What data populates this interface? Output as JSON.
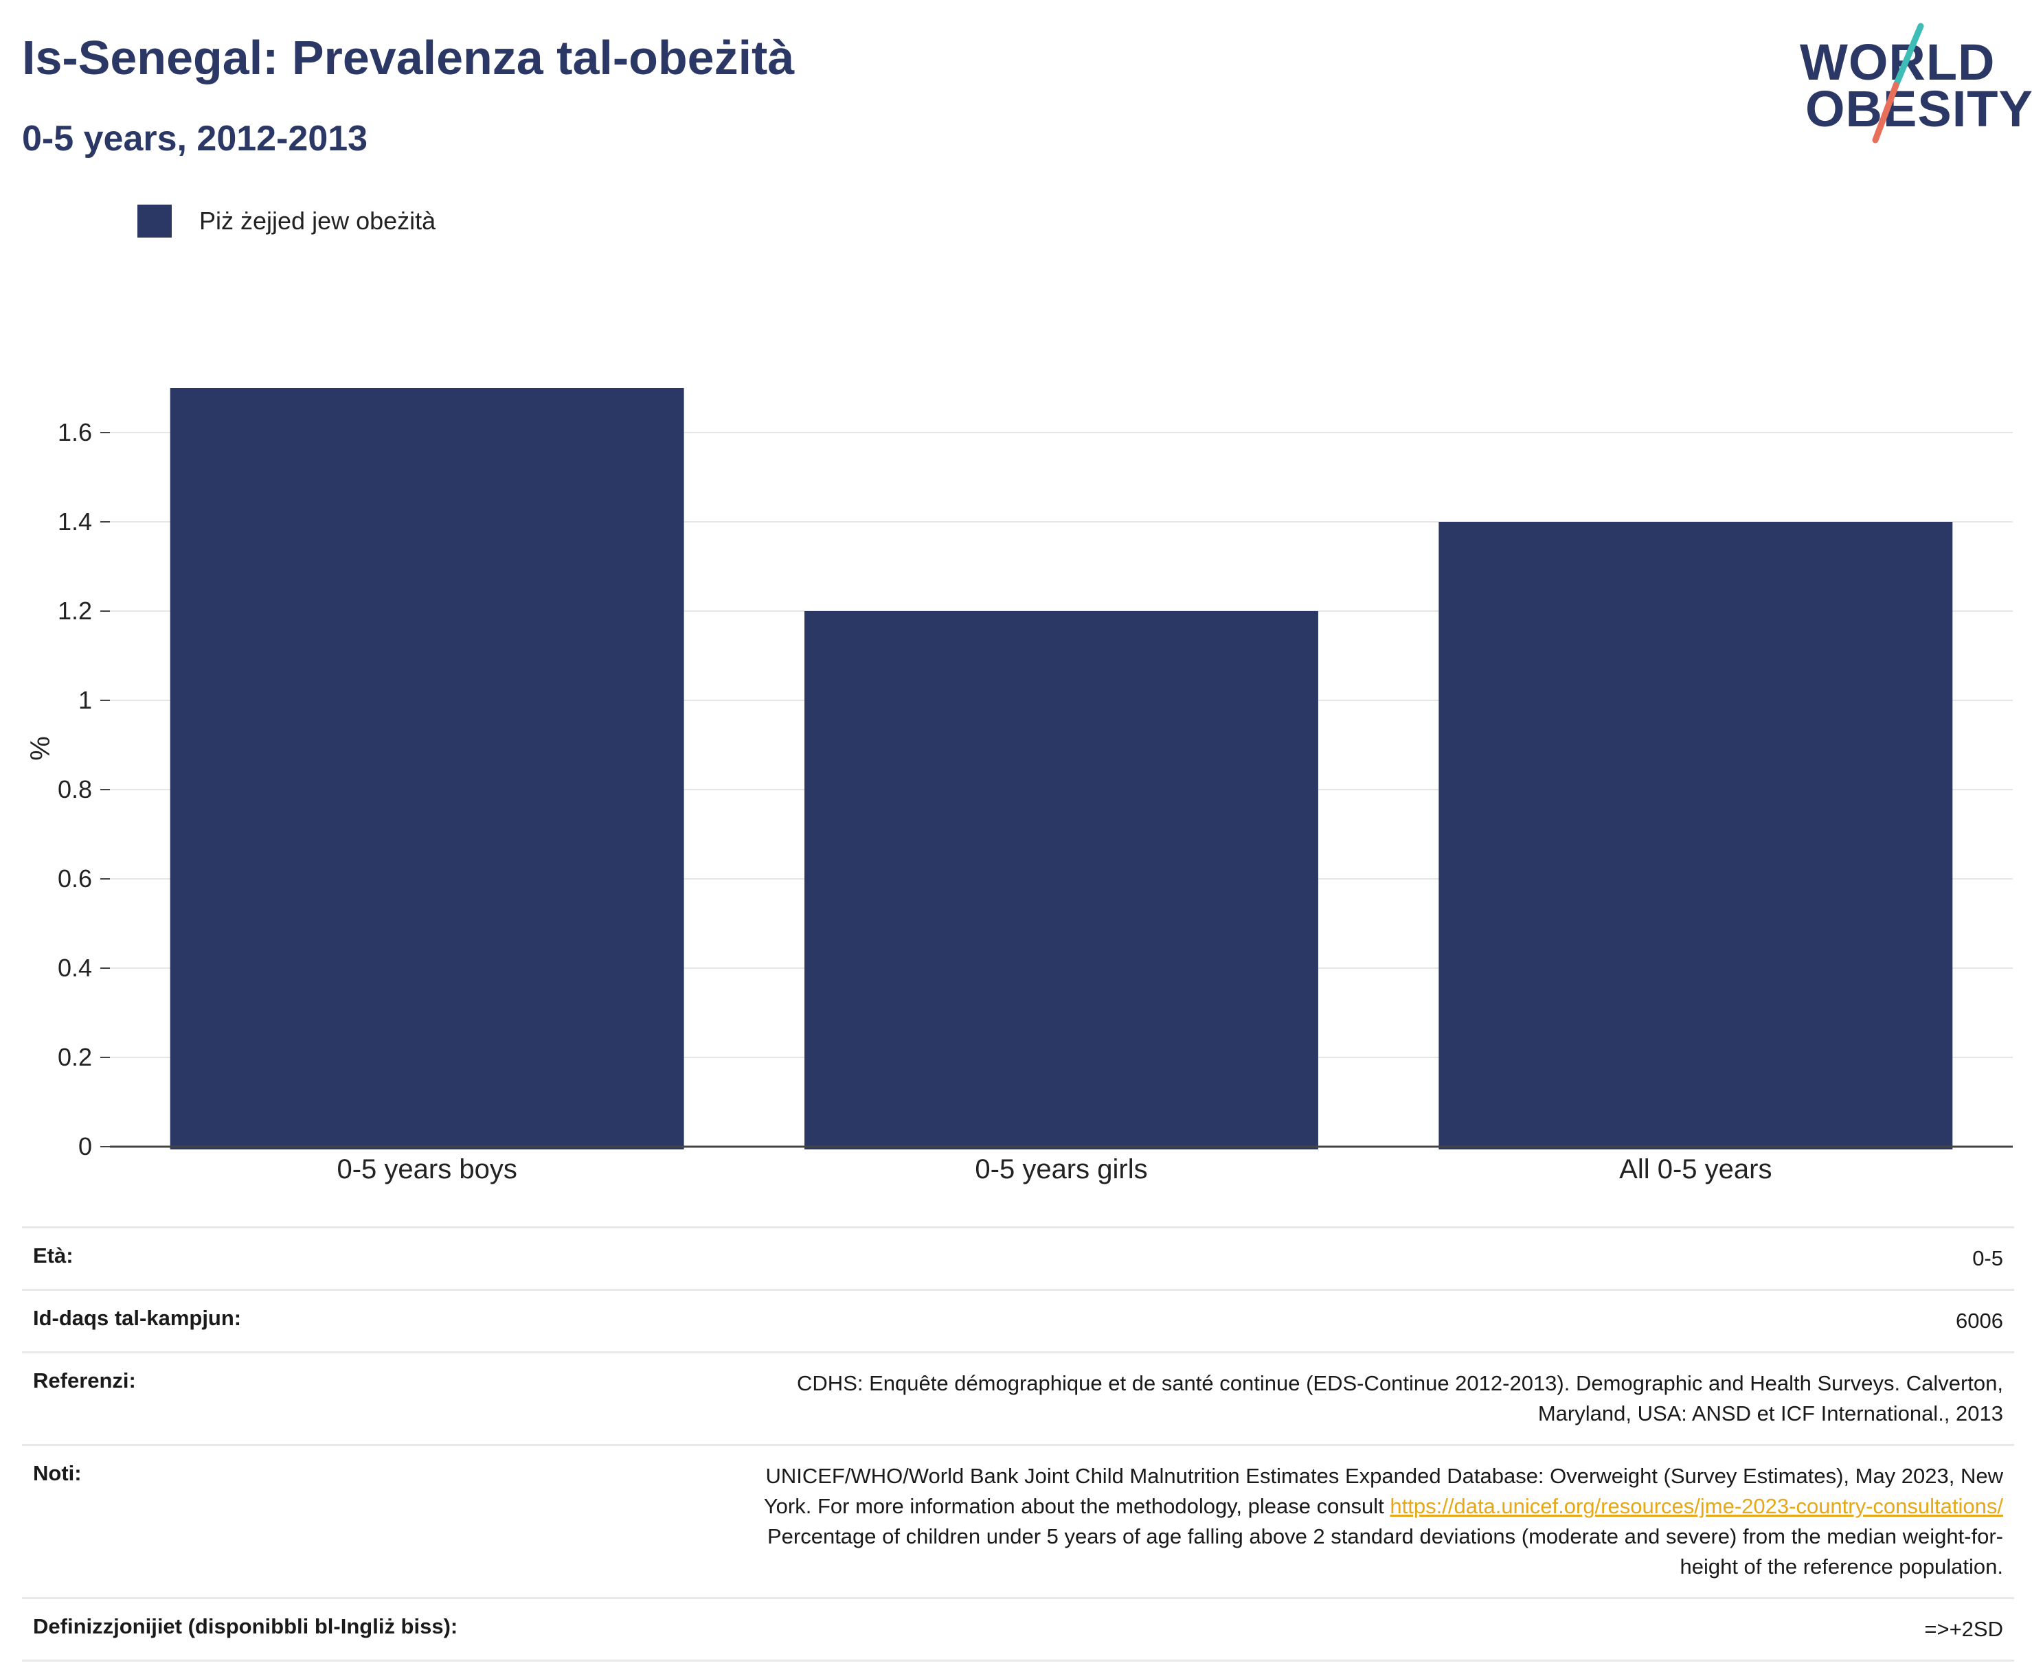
{
  "header": {
    "title": "Is-Senegal: Prevalenza tal-obeżità",
    "subtitle": "0-5 years, 2012-2013"
  },
  "logo": {
    "line1": "WORLD",
    "line2": "OBESITY",
    "colors": {
      "text": "#2b3765",
      "slash_top": "#3dbdb5",
      "slash_bottom": "#e8705a"
    }
  },
  "legend": {
    "label": "Piż żejjed jew obeżità",
    "color": "#2b3765"
  },
  "chart_data": {
    "type": "bar",
    "categories": [
      "0-5 years boys",
      "0-5 years girls",
      "All 0-5 years"
    ],
    "series": [
      {
        "name": "Piż żejjed jew obeżità",
        "values": [
          1.7,
          1.2,
          1.4
        ],
        "color": "#2b3765"
      }
    ],
    "ylabel": "%",
    "ylim": [
      0,
      1.75
    ],
    "yticks": [
      0,
      0.2,
      0.4,
      0.6,
      0.8,
      1,
      1.2,
      1.4,
      1.6
    ],
    "ytick_labels": [
      "0",
      "0.2",
      "0.4",
      "0.6",
      "0.8",
      "1",
      "1.2",
      "1.4",
      "1.6"
    ],
    "grid": true,
    "legend_position": "top-left"
  },
  "info": {
    "age_label": "Età:",
    "age_value": "0-5",
    "sample_label": "Id-daqs tal-kampjun:",
    "sample_value": "6006",
    "refs_label": "Referenzi:",
    "refs_value_1": "CDHS: Enquête démographique et de santé continue (EDS-Continue 2012-2013). Demographic and Health Surveys. Calverton,",
    "refs_value_2": "Maryland, USA: ANSD et ICF International., 2013",
    "notes_label": "Noti:",
    "notes_value_1": "UNICEF/WHO/World Bank Joint Child Malnutrition Estimates Expanded Database: Overweight (Survey Estimates), May 2023, New",
    "notes_value_2a": "York. For more information about the methodology, please consult ",
    "notes_link": "https://data.unicef.org/resources/jme-2023-country-consultations/",
    "notes_value_3": "Percentage of children under 5 years of age falling above 2 standard deviations (moderate and severe) from the median weight-for-",
    "notes_value_4": "height of the reference population.",
    "defs_label": "Definizzjonijiet (disponibbli bl-Ingliż biss):",
    "defs_value": "=>+2SD"
  }
}
